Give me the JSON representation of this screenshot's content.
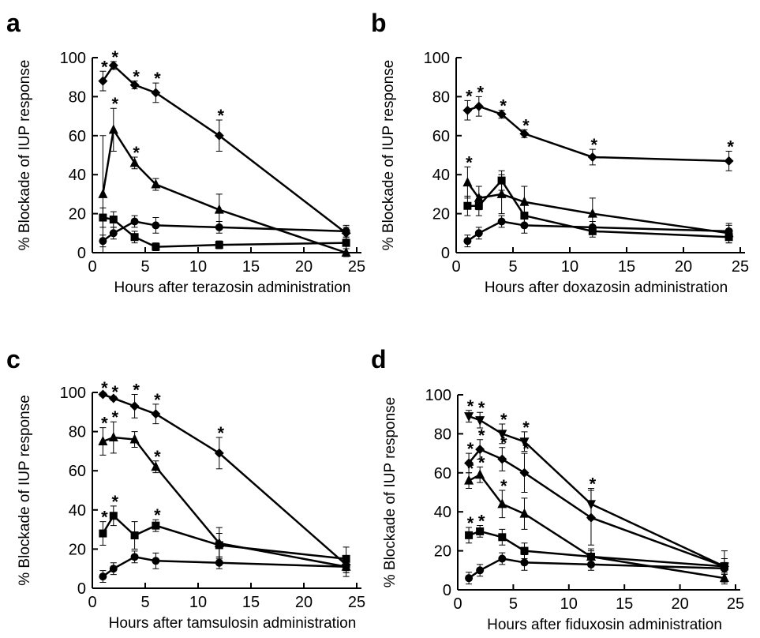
{
  "chart_data": [
    {
      "type": "line",
      "label": "a",
      "ylabel": "% Blockade of IUP response",
      "xlabel": "Hours after terazosin administration",
      "x": [
        1,
        2,
        4,
        6,
        12,
        24
      ],
      "xlim": [
        0,
        25
      ],
      "xticks": [
        0,
        5,
        10,
        15,
        20,
        25
      ],
      "ylim": [
        0,
        100
      ],
      "yticks": [
        0,
        20,
        40,
        60,
        80,
        100
      ],
      "series": [
        {
          "marker": "diamond",
          "color": "#000000",
          "values": [
            88,
            96,
            86,
            82,
            60,
            10
          ],
          "errors": [
            5,
            2,
            2,
            5,
            8,
            3
          ],
          "significance": [
            "*",
            "*",
            "*",
            "*",
            "*",
            null
          ]
        },
        {
          "marker": "triangle",
          "color": "#000000",
          "values": [
            30,
            63,
            46,
            35,
            22,
            0
          ],
          "errors": [
            30,
            11,
            3,
            3,
            8,
            2
          ],
          "significance": [
            null,
            "*",
            "*",
            null,
            null,
            null
          ]
        },
        {
          "marker": "square",
          "color": "#000000",
          "values": [
            18,
            17,
            8,
            3,
            4,
            5
          ],
          "errors": [
            5,
            4,
            3,
            2,
            2,
            3
          ],
          "significance": [
            null,
            null,
            null,
            null,
            null,
            null
          ]
        },
        {
          "marker": "circle",
          "color": "#000000",
          "values": [
            6,
            10,
            16,
            14,
            13,
            11
          ],
          "errors": [
            3,
            3,
            3,
            4,
            3,
            3
          ],
          "significance": [
            null,
            null,
            null,
            null,
            null,
            null
          ]
        }
      ]
    },
    {
      "type": "line",
      "label": "b",
      "ylabel": "% Blockade of IUP response",
      "xlabel": "Hours after doxazosin administration",
      "x": [
        1,
        2,
        4,
        6,
        12,
        24
      ],
      "xlim": [
        0,
        25
      ],
      "xticks": [
        0,
        5,
        10,
        15,
        20,
        25
      ],
      "ylim": [
        0,
        100
      ],
      "yticks": [
        0,
        20,
        40,
        60,
        80,
        100
      ],
      "series": [
        {
          "marker": "diamond",
          "color": "#000000",
          "values": [
            73,
            75,
            71,
            61,
            49,
            47
          ],
          "errors": [
            5,
            5,
            2,
            2,
            4,
            5
          ],
          "significance": [
            "*",
            "*",
            "*",
            "*",
            "*",
            "*"
          ]
        },
        {
          "marker": "triangle",
          "color": "#000000",
          "values": [
            36,
            28,
            30,
            26,
            20,
            10
          ],
          "errors": [
            8,
            6,
            10,
            8,
            8,
            5
          ],
          "significance": [
            "*",
            null,
            null,
            null,
            null,
            null
          ]
        },
        {
          "marker": "square",
          "color": "#000000",
          "values": [
            24,
            24,
            37,
            19,
            11,
            8
          ],
          "errors": [
            5,
            5,
            5,
            6,
            3,
            3
          ],
          "significance": [
            null,
            null,
            null,
            null,
            null,
            null
          ]
        },
        {
          "marker": "circle",
          "color": "#000000",
          "values": [
            6,
            10,
            16,
            14,
            13,
            11
          ],
          "errors": [
            3,
            3,
            3,
            4,
            3,
            3
          ],
          "significance": [
            null,
            null,
            null,
            null,
            null,
            null
          ]
        }
      ]
    },
    {
      "type": "line",
      "label": "c",
      "ylabel": "% Blockade of IUP response",
      "xlabel": "Hours after tamsulosin administration",
      "x": [
        1,
        2,
        4,
        6,
        12,
        24
      ],
      "xlim": [
        0,
        25
      ],
      "xticks": [
        0,
        5,
        10,
        15,
        20,
        25
      ],
      "ylim": [
        0,
        100
      ],
      "yticks": [
        0,
        20,
        40,
        60,
        80,
        100
      ],
      "series": [
        {
          "marker": "diamond",
          "color": "#000000",
          "values": [
            99,
            97,
            93,
            89,
            69,
            12
          ],
          "errors": [
            1,
            1,
            6,
            5,
            8,
            4
          ],
          "significance": [
            "*",
            "*",
            "*",
            "*",
            "*",
            null
          ]
        },
        {
          "marker": "triangle",
          "color": "#000000",
          "values": [
            75,
            77,
            76,
            62,
            23,
            11
          ],
          "errors": [
            7,
            8,
            4,
            3,
            8,
            5
          ],
          "significance": [
            "*",
            "*",
            null,
            "*",
            null,
            null
          ]
        },
        {
          "marker": "square",
          "color": "#000000",
          "values": [
            28,
            37,
            27,
            32,
            22,
            15
          ],
          "errors": [
            6,
            5,
            7,
            3,
            6,
            6
          ],
          "significance": [
            "*",
            "*",
            null,
            "*",
            null,
            null
          ]
        },
        {
          "marker": "circle",
          "color": "#000000",
          "values": [
            6,
            10,
            16,
            14,
            13,
            11
          ],
          "errors": [
            3,
            3,
            3,
            4,
            3,
            3
          ],
          "significance": [
            null,
            null,
            null,
            null,
            null,
            null
          ]
        }
      ]
    },
    {
      "type": "line",
      "label": "d",
      "ylabel": "% Blockade of IUP response",
      "xlabel": "Hours after fiduxosin administration",
      "x": [
        1,
        2,
        4,
        6,
        12,
        24
      ],
      "xlim": [
        0,
        25
      ],
      "xticks": [
        0,
        5,
        10,
        15,
        20,
        25
      ],
      "ylim": [
        0,
        100
      ],
      "yticks": [
        0,
        20,
        40,
        60,
        80,
        100
      ],
      "series": [
        {
          "marker": "triangle-down",
          "color": "#000000",
          "values": [
            89,
            87,
            80,
            76,
            44,
            12
          ],
          "errors": [
            3,
            4,
            5,
            5,
            8,
            4
          ],
          "significance": [
            "*",
            "*",
            "*",
            "*",
            "*",
            null
          ]
        },
        {
          "marker": "diamond",
          "color": "#000000",
          "values": [
            65,
            72,
            67,
            60,
            37,
            12
          ],
          "errors": [
            5,
            5,
            6,
            10,
            14,
            4
          ],
          "significance": [
            "*",
            "*",
            "*",
            "*",
            null,
            null
          ]
        },
        {
          "marker": "triangle",
          "color": "#000000",
          "values": [
            56,
            59,
            44,
            39,
            17,
            6
          ],
          "errors": [
            4,
            4,
            7,
            8,
            4,
            3
          ],
          "significance": [
            "*",
            "*",
            "*",
            null,
            null,
            null
          ]
        },
        {
          "marker": "square",
          "color": "#000000",
          "values": [
            28,
            30,
            27,
            20,
            17,
            12
          ],
          "errors": [
            4,
            3,
            4,
            4,
            3,
            8
          ],
          "significance": [
            "*",
            "*",
            null,
            null,
            null,
            null
          ]
        },
        {
          "marker": "circle",
          "color": "#000000",
          "values": [
            6,
            10,
            16,
            14,
            13,
            11
          ],
          "errors": [
            3,
            3,
            3,
            4,
            3,
            3
          ],
          "significance": [
            null,
            null,
            null,
            null,
            null,
            null
          ]
        }
      ]
    }
  ]
}
